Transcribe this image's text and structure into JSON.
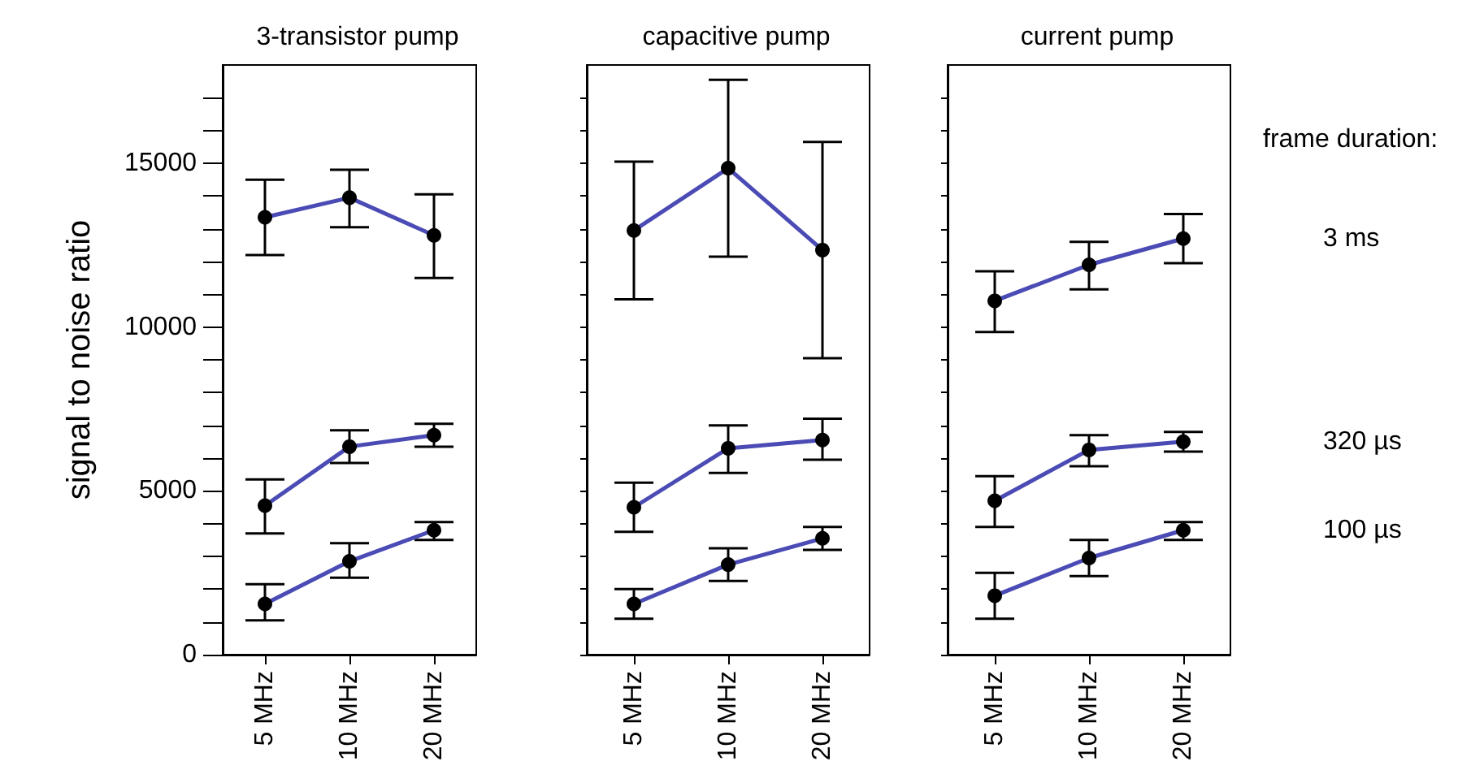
{
  "chart_data": [
    {
      "type": "line",
      "title": "3-transistor pump",
      "ylabel": "signal to noise ratio",
      "categories": [
        "5 MHz",
        "10 MHz",
        "20 MHz"
      ],
      "ylim": [
        0,
        18000
      ],
      "yticks": [
        0,
        {
          "value": 1000,
          "label": null
        },
        {
          "value": 2000,
          "label": null
        },
        {
          "value": 3000,
          "label": null
        },
        {
          "value": 4000,
          "label": null
        },
        5000,
        {
          "value": 6000,
          "label": null
        },
        {
          "value": 7000,
          "label": null
        },
        {
          "value": 8000,
          "label": null
        },
        {
          "value": 9000,
          "label": null
        },
        10000,
        {
          "value": 11000,
          "label": null
        },
        {
          "value": 12000,
          "label": null
        },
        {
          "value": 13000,
          "label": null
        },
        {
          "value": 14000,
          "label": null
        },
        15000,
        {
          "value": 16000,
          "label": null
        },
        {
          "value": 17000,
          "label": null
        }
      ],
      "grid": false,
      "marker": "circle",
      "line_style": "solid",
      "series": [
        {
          "color": "#4b4bb5",
          "values": [
            13350,
            13950,
            12800
          ],
          "errors": [
            [
              12200,
              14500
            ],
            [
              13050,
              14800
            ],
            [
              11500,
              14050
            ]
          ]
        },
        {
          "color": "#4b4bb5",
          "values": [
            4550,
            6350,
            6700
          ],
          "errors": [
            [
              3700,
              5350
            ],
            [
              5850,
              6850
            ],
            [
              6350,
              7050
            ]
          ]
        },
        {
          "color": "#4b4bb5",
          "values": [
            1550,
            2850,
            3800
          ],
          "errors": [
            [
              1050,
              2150
            ],
            [
              2350,
              3400
            ],
            [
              3500,
              4050
            ]
          ]
        }
      ]
    },
    {
      "type": "line",
      "title": "capacitive pump",
      "categories": [
        "5 MHz",
        "10 MHz",
        "20 MHz"
      ],
      "ylim": [
        0,
        18000
      ],
      "yticks": [
        0,
        {
          "value": 1000,
          "label": null
        },
        {
          "value": 2000,
          "label": null
        },
        {
          "value": 3000,
          "label": null
        },
        {
          "value": 4000,
          "label": null
        },
        5000,
        {
          "value": 6000,
          "label": null
        },
        {
          "value": 7000,
          "label": null
        },
        {
          "value": 8000,
          "label": null
        },
        {
          "value": 9000,
          "label": null
        },
        10000,
        {
          "value": 11000,
          "label": null
        },
        {
          "value": 12000,
          "label": null
        },
        {
          "value": 13000,
          "label": null
        },
        {
          "value": 14000,
          "label": null
        },
        15000,
        {
          "value": 16000,
          "label": null
        },
        {
          "value": 17000,
          "label": null
        }
      ],
      "tick_labels": "x",
      "grid": false,
      "marker": "circle",
      "line_style": "solid",
      "series": [
        {
          "color": "#4b4bb5",
          "values": [
            12950,
            14850,
            12350
          ],
          "errors": [
            [
              10850,
              15050
            ],
            [
              12150,
              17550
            ],
            [
              9050,
              15650
            ]
          ]
        },
        {
          "color": "#4b4bb5",
          "values": [
            4500,
            6300,
            6550
          ],
          "errors": [
            [
              3750,
              5250
            ],
            [
              5550,
              7000
            ],
            [
              5950,
              7200
            ]
          ]
        },
        {
          "color": "#4b4bb5",
          "values": [
            1550,
            2750,
            3550
          ],
          "errors": [
            [
              1100,
              2000
            ],
            [
              2250,
              3250
            ],
            [
              3200,
              3900
            ]
          ]
        }
      ]
    },
    {
      "type": "line",
      "title": "current pump",
      "legend_title": "frame duration:",
      "categories": [
        "5 MHz",
        "10 MHz",
        "20 MHz"
      ],
      "ylim": [
        0,
        18000
      ],
      "yticks": [
        0,
        {
          "value": 1000,
          "label": null
        },
        {
          "value": 2000,
          "label": null
        },
        {
          "value": 3000,
          "label": null
        },
        {
          "value": 4000,
          "label": null
        },
        5000,
        {
          "value": 6000,
          "label": null
        },
        {
          "value": 7000,
          "label": null
        },
        {
          "value": 8000,
          "label": null
        },
        {
          "value": 9000,
          "label": null
        },
        10000,
        {
          "value": 11000,
          "label": null
        },
        {
          "value": 12000,
          "label": null
        },
        {
          "value": 13000,
          "label": null
        },
        {
          "value": 14000,
          "label": null
        },
        15000,
        {
          "value": 16000,
          "label": null
        },
        {
          "value": 17000,
          "label": null
        }
      ],
      "tick_labels": "x",
      "grid": false,
      "marker": "circle",
      "line_style": "solid",
      "series": [
        {
          "name": "3 ms",
          "color": "#4b4bb5",
          "values": [
            10800,
            11900,
            12700
          ],
          "errors": [
            [
              9850,
              11700
            ],
            [
              11150,
              12600
            ],
            [
              11950,
              13450
            ]
          ]
        },
        {
          "name": "320 µs",
          "color": "#4b4bb5",
          "values": [
            4700,
            6250,
            6500
          ],
          "errors": [
            [
              3900,
              5450
            ],
            [
              5750,
              6700
            ],
            [
              6200,
              6800
            ]
          ]
        },
        {
          "name": "100 µs",
          "color": "#4b4bb5",
          "values": [
            1800,
            2950,
            3800
          ],
          "errors": [
            [
              1100,
              2500
            ],
            [
              2400,
              3500
            ],
            [
              3500,
              4050
            ]
          ]
        }
      ]
    }
  ]
}
